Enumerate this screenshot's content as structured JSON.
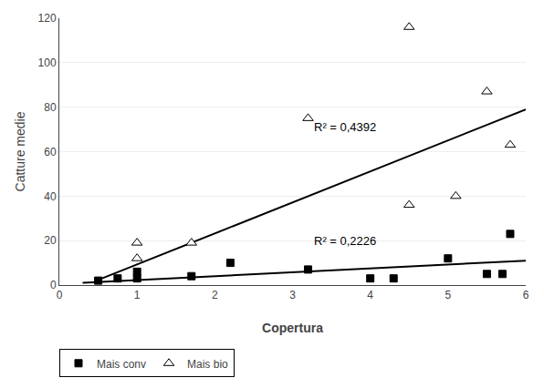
{
  "chart_data": {
    "type": "scatter",
    "xlabel": "Copertura",
    "ylabel": "Catture medie",
    "xlim": [
      0,
      6
    ],
    "ylim": [
      0,
      120
    ],
    "xticks": [
      0,
      1,
      2,
      3,
      4,
      5,
      6
    ],
    "yticks": [
      0,
      20,
      40,
      60,
      80,
      100,
      120
    ],
    "grid": "y",
    "legend": "lower left",
    "series": [
      {
        "type": "line",
        "color": "#000000",
        "x": [
          0.3,
          6.0
        ],
        "values": [
          1.0,
          11.0
        ]
      },
      {
        "type": "line",
        "color": "#000000",
        "x": [
          0.55,
          6.0
        ],
        "values": [
          3.0,
          79.0
        ]
      },
      {
        "type": "scatter",
        "name": "Mais conv",
        "color": "#000000",
        "marker": "square",
        "x": [
          0.5,
          0.75,
          1.0,
          1.0,
          1.7,
          2.2,
          3.2,
          4.0,
          4.3,
          5.0,
          5.5,
          5.7,
          5.8
        ],
        "values": [
          2,
          3,
          6,
          3,
          4,
          10,
          7,
          3,
          3,
          12,
          5,
          5,
          23
        ]
      },
      {
        "type": "scatter",
        "name": "Mais bio",
        "color": "#ffffff",
        "marker": "triangle",
        "x": [
          1.0,
          1.0,
          1.7,
          3.2,
          4.5,
          4.5,
          5.1,
          5.5,
          5.8
        ],
        "values": [
          12,
          19,
          19,
          75,
          116,
          36,
          40,
          87,
          63
        ]
      }
    ],
    "annotations": [
      {
        "text": "R² = 0,2226",
        "x": 3.25,
        "y": 16
      },
      {
        "text": "R² = 0,4392",
        "x": 3.25,
        "y": 67
      }
    ]
  }
}
